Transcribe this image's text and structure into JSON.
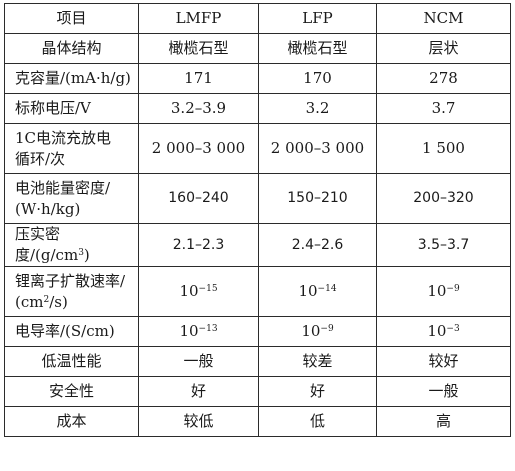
{
  "table": {
    "headers": [
      "项目",
      "LMFP",
      "LFP",
      "NCM"
    ],
    "rows": [
      {
        "label": "晶体结构",
        "cells": [
          "橄榄石型",
          "橄榄石型",
          "层状"
        ]
      },
      {
        "label": "克容量/(mA·h/g)",
        "cells": [
          "171",
          "170",
          "278"
        ]
      },
      {
        "label": "标称电压/V",
        "cells": [
          "3.2–3.9",
          "3.2",
          "3.7"
        ]
      },
      {
        "label_line1": "1C电流充放电",
        "label_line2": "循环/次",
        "cells": [
          "2 000–3 000",
          "2 000–3 000",
          "1 500"
        ]
      },
      {
        "label_line1": "电池能量密度/",
        "label_line2": "(W·h/kg)",
        "cells": [
          "160–240",
          "150–210",
          "200–320"
        ]
      },
      {
        "label_main": "压实密度/(g/cm",
        "label_sup": "3",
        "label_end": ")",
        "cells": [
          "2.1–2.3",
          "2.4–2.6",
          "3.5–3.7"
        ]
      },
      {
        "label_line1": "锂离子扩散速率/",
        "label_line2_main": "(cm",
        "label_line2_sup": "2",
        "label_line2_end": "/s)",
        "cells": [
          {
            "base": "10",
            "exp": "−15"
          },
          {
            "base": "10",
            "exp": "−14"
          },
          {
            "base": "10",
            "exp": "−9"
          }
        ]
      },
      {
        "label": "电导率/(S/cm)",
        "cells": [
          {
            "base": "10",
            "exp": "−13"
          },
          {
            "base": "10",
            "exp": "−9"
          },
          {
            "base": "10",
            "exp": "−3"
          }
        ]
      },
      {
        "label": "低温性能",
        "cells": [
          "一般",
          "较差",
          "较好"
        ]
      },
      {
        "label": "安全性",
        "cells": [
          "好",
          "好",
          "一般"
        ]
      },
      {
        "label": "成本",
        "cells": [
          "较低",
          "低",
          "高"
        ]
      }
    ]
  }
}
